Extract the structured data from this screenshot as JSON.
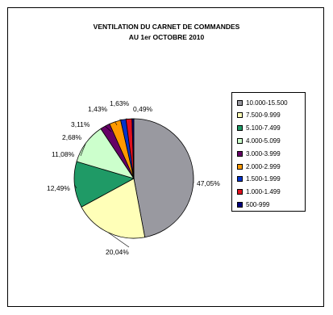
{
  "chart_data": {
    "type": "pie",
    "title": "VENTILATION DU CARNET DE COMMANDES",
    "subtitle": "AU 1er OCTOBRE 2010",
    "legend_position": "right",
    "slices": [
      {
        "label": "10.000-15.500",
        "value": 47.05,
        "value_label": "47,05%",
        "color": "#9999a0"
      },
      {
        "label": "7.500-9.999",
        "value": 20.04,
        "value_label": "20,04%",
        "color": "#ffffb8"
      },
      {
        "label": "5.100-7.499",
        "value": 12.49,
        "value_label": "12,49%",
        "color": "#1f9a66"
      },
      {
        "label": "4.000-5.099",
        "value": 11.08,
        "value_label": "11,08%",
        "color": "#ccffcc"
      },
      {
        "label": "3.000-3.999",
        "value": 2.68,
        "value_label": "2,68%",
        "color": "#660066"
      },
      {
        "label": "2.000-2.999",
        "value": 3.11,
        "value_label": "3,11%",
        "color": "#ff9900"
      },
      {
        "label": "1.500-1.999",
        "value": 1.43,
        "value_label": "1,43%",
        "color": "#0033cc"
      },
      {
        "label": "1.000-1.499",
        "value": 1.63,
        "value_label": "1,63%",
        "color": "#e0101e"
      },
      {
        "label": "500-999",
        "value": 0.49,
        "value_label": "0,49%",
        "color": "#000080"
      }
    ]
  }
}
